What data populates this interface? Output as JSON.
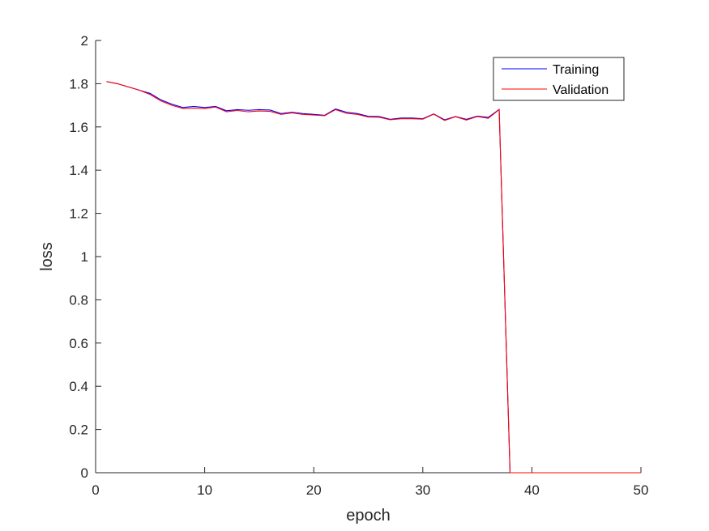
{
  "chart_data": {
    "type": "line",
    "title": "",
    "xlabel": "epoch",
    "ylabel": "loss",
    "xlim": [
      0,
      50
    ],
    "ylim": [
      0,
      2
    ],
    "xticks": [
      0,
      10,
      20,
      30,
      40,
      50
    ],
    "xtick_labels": [
      "0",
      "10",
      "20",
      "30",
      "40",
      "50"
    ],
    "yticks": [
      0,
      0.2,
      0.4,
      0.6,
      0.8,
      1,
      1.2,
      1.4,
      1.6,
      1.8,
      2
    ],
    "ytick_labels": [
      "0",
      "0.2",
      "0.4",
      "0.6",
      "0.8",
      "1",
      "1.2",
      "1.4",
      "1.6",
      "1.8",
      "2"
    ],
    "grid": false,
    "legend_position": "top-right",
    "x": [
      1,
      2,
      3,
      4,
      5,
      6,
      7,
      8,
      9,
      10,
      11,
      12,
      13,
      14,
      15,
      16,
      17,
      18,
      19,
      20,
      21,
      22,
      23,
      24,
      25,
      26,
      27,
      28,
      29,
      30,
      31,
      32,
      33,
      34,
      35,
      36,
      37,
      38,
      39,
      40,
      41,
      42,
      43,
      44,
      45,
      46,
      47,
      48,
      49,
      50
    ],
    "series": [
      {
        "name": "Training",
        "color": "#0000ff",
        "values": [
          1.81,
          1.8,
          1.785,
          1.77,
          1.755,
          1.725,
          1.705,
          1.69,
          1.695,
          1.69,
          1.695,
          1.675,
          1.68,
          1.677,
          1.68,
          1.678,
          1.662,
          1.668,
          1.662,
          1.658,
          1.654,
          1.683,
          1.668,
          1.662,
          1.649,
          1.648,
          1.635,
          1.641,
          1.641,
          1.638,
          1.66,
          1.633,
          1.648,
          1.635,
          1.65,
          1.644,
          1.681,
          0,
          0,
          0,
          0,
          0,
          0,
          0,
          0,
          0,
          0,
          0,
          0,
          0
        ]
      },
      {
        "name": "Validation",
        "color": "#ff0000",
        "values": [
          1.81,
          1.8,
          1.785,
          1.77,
          1.75,
          1.72,
          1.7,
          1.685,
          1.687,
          1.685,
          1.692,
          1.67,
          1.676,
          1.67,
          1.674,
          1.672,
          1.658,
          1.665,
          1.658,
          1.655,
          1.652,
          1.68,
          1.663,
          1.658,
          1.646,
          1.645,
          1.633,
          1.638,
          1.638,
          1.636,
          1.659,
          1.63,
          1.647,
          1.632,
          1.648,
          1.64,
          1.68,
          0,
          0,
          0,
          0,
          0,
          0,
          0,
          0,
          0,
          0,
          0,
          0,
          0
        ]
      }
    ]
  }
}
